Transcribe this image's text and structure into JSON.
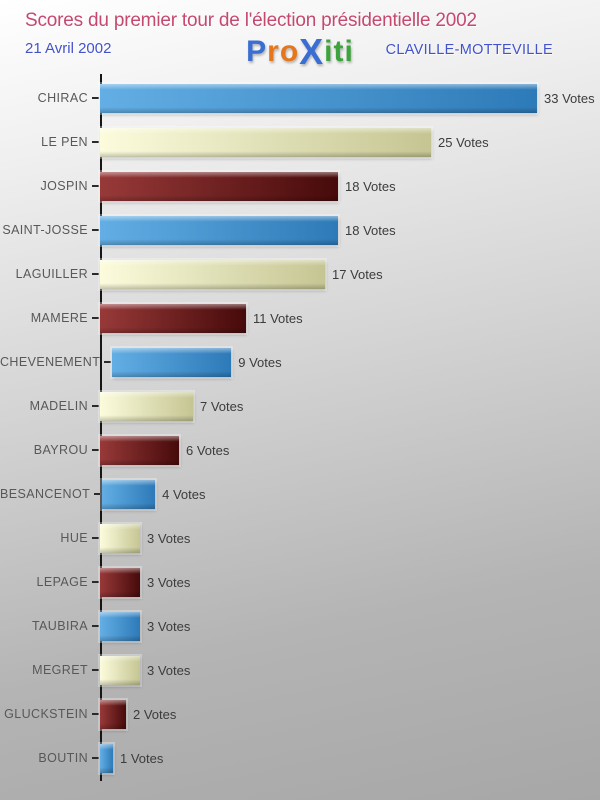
{
  "header": {
    "title": "Scores du premier tour de l'élection présidentielle 2002",
    "date": "21 Avril 2002",
    "location": "CLAVILLE-MOTTEVILLE",
    "logo_segments": [
      {
        "text": "P",
        "color": "#3b6ed2"
      },
      {
        "text": "ro",
        "color": "#e5761b"
      },
      {
        "text": "X",
        "color": "#3b6ed2"
      },
      {
        "text": "iti",
        "color": "#3da33d"
      }
    ]
  },
  "chart_data": {
    "type": "bar",
    "orientation": "horizontal",
    "title": "Scores du premier tour de l'élection présidentielle 2002",
    "categories": [
      "CHIRAC",
      "LE PEN",
      "JOSPIN",
      "SAINT-JOSSE",
      "LAGUILLER",
      "MAMERE",
      "CHEVENEMENT",
      "MADELIN",
      "BAYROU",
      "BESANCENOT",
      "HUE",
      "LEPAGE",
      "TAUBIRA",
      "MEGRET",
      "GLUCKSTEIN",
      "BOUTIN"
    ],
    "values": [
      33,
      25,
      18,
      18,
      17,
      11,
      9,
      7,
      6,
      4,
      3,
      3,
      3,
      3,
      2,
      1
    ],
    "value_suffix": " Votes",
    "xlim": [
      0,
      33
    ],
    "grid": false,
    "legend": false,
    "bar_color_cycle": [
      "blue",
      "cream",
      "darkred"
    ],
    "bar_colors": {
      "blue": {
        "from": "#63aee4",
        "to": "#2d7ab8"
      },
      "cream": {
        "from": "#fcfcdd",
        "to": "#c5c593"
      },
      "darkred": {
        "from": "#983939",
        "to": "#470a0a"
      }
    }
  }
}
